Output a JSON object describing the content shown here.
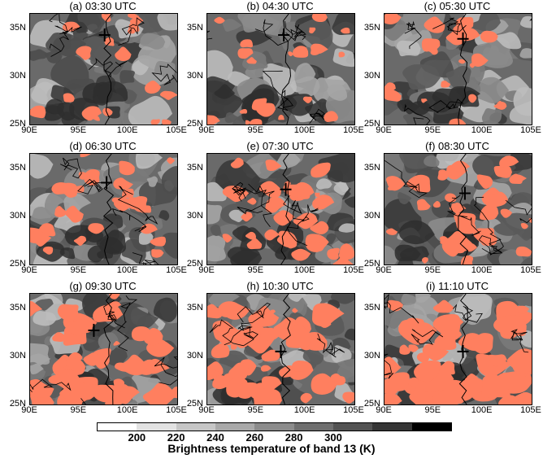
{
  "panels": [
    {
      "title": "(a) 03:30 UTC",
      "marker": {
        "lon": 97.6,
        "lat": 34.3
      },
      "convective_coverage": 0.15
    },
    {
      "title": "(b) 04:30 UTC",
      "marker": {
        "lon": 97.8,
        "lat": 34.3
      },
      "convective_coverage": 0.18
    },
    {
      "title": "(c) 05:30 UTC",
      "marker": {
        "lon": 98.0,
        "lat": 33.9
      },
      "convective_coverage": 0.22
    },
    {
      "title": "(d) 06:30 UTC",
      "marker": {
        "lon": 97.8,
        "lat": 33.5
      },
      "convective_coverage": 0.28
    },
    {
      "title": "(e) 07:30 UTC",
      "marker": {
        "lon": 98.0,
        "lat": 32.8
      },
      "convective_coverage": 0.34
    },
    {
      "title": "(f) 08:30 UTC",
      "marker": {
        "lon": 98.2,
        "lat": 32.4
      },
      "convective_coverage": 0.42
    },
    {
      "title": "(g) 09:30 UTC",
      "marker": {
        "lon": 96.5,
        "lat": 32.7
      },
      "convective_coverage": 0.52
    },
    {
      "title": "(h) 10:30 UTC",
      "marker": {
        "lon": 97.5,
        "lat": 30.5
      },
      "convective_coverage": 0.58
    },
    {
      "title": "(i) 11:10 UTC",
      "marker": {
        "lon": 98.0,
        "lat": 30.5
      },
      "convective_coverage": 0.62
    }
  ],
  "axes": {
    "lon_ticks": [
      "90E",
      "95E",
      "100E",
      "105E"
    ],
    "lat_ticks": [
      "35N",
      "30N",
      "25N"
    ],
    "lon_range": [
      90,
      105
    ],
    "lat_range": [
      25,
      36.5
    ]
  },
  "colorbar": {
    "title": "Brightness temperature of band 13 (K)",
    "labels": [
      "200",
      "220",
      "240",
      "260",
      "280",
      "300"
    ],
    "colors": [
      "#ffffff",
      "#e2e2e2",
      "#c6c6c6",
      "#a9a9a9",
      "#8c8c8c",
      "#6f6f6f",
      "#535353",
      "#363636",
      "#000000"
    ],
    "convective_color": "#ff7f5f"
  }
}
